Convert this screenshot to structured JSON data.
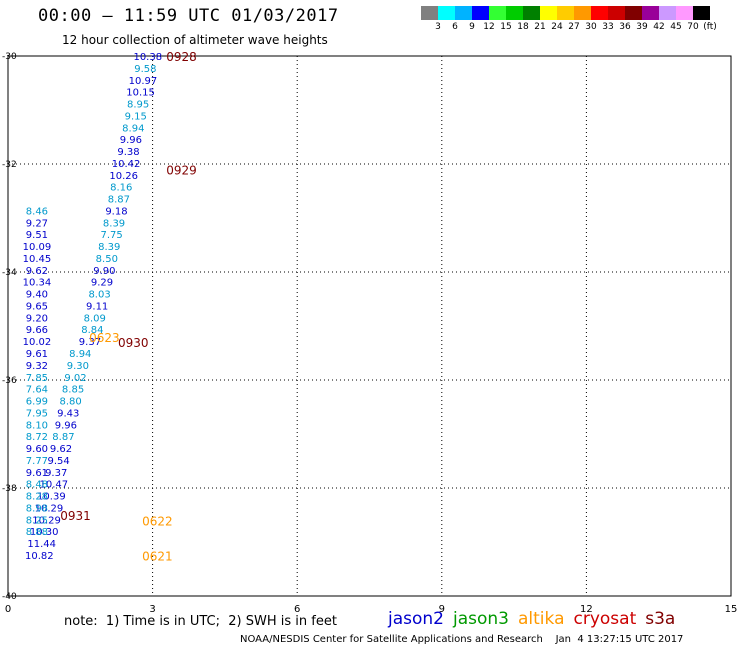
{
  "header": {
    "title": "00:00 — 11:59 UTC 01/03/2017",
    "subtitle": "12 hour collection of altimeter wave heights"
  },
  "colorbar": {
    "swatches": [
      "#808080",
      "#00ffff",
      "#00b3ff",
      "#0000ff",
      "#33ff33",
      "#00cc00",
      "#008000",
      "#ffff00",
      "#ffcc00",
      "#ff9900",
      "#ff0000",
      "#cc0000",
      "#800000",
      "#990099",
      "#cc99ff",
      "#ff99ff",
      "#000000"
    ],
    "labels": [
      "3",
      "6",
      "9",
      "12",
      "15",
      "18",
      "21",
      "24",
      "27",
      "30",
      "33",
      "36",
      "39",
      "42",
      "45",
      "70",
      "(ft)"
    ],
    "unit": "(ft)"
  },
  "note": "note:  1) Time is in UTC;  2) SWH is in feet",
  "legend": [
    {
      "name": "jason2",
      "color": "#0000cc"
    },
    {
      "name": "jason3",
      "color": "#009900"
    },
    {
      "name": "altika",
      "color": "#ff9900"
    },
    {
      "name": "cryosat",
      "color": "#cc0000"
    },
    {
      "name": "s3a",
      "color": "#800000"
    }
  ],
  "credit": "NOAA/NESDIS Center for Satellite Applications and Research    Jan  4 13:27:15 UTC 2017",
  "chart_data": {
    "type": "scatter",
    "title": "12 hour collection of altimeter wave heights",
    "xlim": [
      0,
      15
    ],
    "ylim": [
      -40,
      -30
    ],
    "x_ticks": [
      "0",
      "3",
      "6",
      "9",
      "12",
      "15"
    ],
    "y_ticks": [
      "-30",
      "-32",
      "-34",
      "-36",
      "-38",
      "-40"
    ],
    "grid": true,
    "points": [
      {
        "x": 2.9,
        "y": -30.0,
        "label": "10.38",
        "color": "#0000cc"
      },
      {
        "x": 2.85,
        "y": -30.22,
        "label": "9.58",
        "color": "#0099cc"
      },
      {
        "x": 2.8,
        "y": -30.44,
        "label": "10.97",
        "color": "#0000cc"
      },
      {
        "x": 2.75,
        "y": -30.66,
        "label": "10.15",
        "color": "#0000cc"
      },
      {
        "x": 2.7,
        "y": -30.88,
        "label": "8.95",
        "color": "#0099cc"
      },
      {
        "x": 2.65,
        "y": -31.1,
        "label": "9.15",
        "color": "#0099cc"
      },
      {
        "x": 2.6,
        "y": -31.32,
        "label": "8.94",
        "color": "#0099cc"
      },
      {
        "x": 2.55,
        "y": -31.54,
        "label": "9.96",
        "color": "#0000cc"
      },
      {
        "x": 2.5,
        "y": -31.76,
        "label": "9.38",
        "color": "#0000cc"
      },
      {
        "x": 2.45,
        "y": -31.98,
        "label": "10.42",
        "color": "#0000cc"
      },
      {
        "x": 2.4,
        "y": -32.2,
        "label": "10.26",
        "color": "#0000cc"
      },
      {
        "x": 2.35,
        "y": -32.42,
        "label": "8.16",
        "color": "#0099cc"
      },
      {
        "x": 2.3,
        "y": -32.64,
        "label": "8.87",
        "color": "#0099cc"
      },
      {
        "x": 2.25,
        "y": -32.86,
        "label": "9.18",
        "color": "#0000cc"
      },
      {
        "x": 2.2,
        "y": -33.08,
        "label": "8.39",
        "color": "#0099cc"
      },
      {
        "x": 2.15,
        "y": -33.3,
        "label": "7.75",
        "color": "#0099cc"
      },
      {
        "x": 2.1,
        "y": -33.52,
        "label": "8.39",
        "color": "#0099cc"
      },
      {
        "x": 2.05,
        "y": -33.74,
        "label": "8.50",
        "color": "#0099cc"
      },
      {
        "x": 2.0,
        "y": -33.96,
        "label": "9.90",
        "color": "#0000cc"
      },
      {
        "x": 1.95,
        "y": -34.18,
        "label": "9.29",
        "color": "#0000cc"
      },
      {
        "x": 1.9,
        "y": -34.4,
        "label": "8.03",
        "color": "#0099cc"
      },
      {
        "x": 1.85,
        "y": -34.62,
        "label": "9.11",
        "color": "#0000cc"
      },
      {
        "x": 1.8,
        "y": -34.84,
        "label": "8.09",
        "color": "#0099cc"
      },
      {
        "x": 1.75,
        "y": -35.06,
        "label": "8.84",
        "color": "#0099cc"
      },
      {
        "x": 1.7,
        "y": -35.28,
        "label": "9.37",
        "color": "#0000cc"
      },
      {
        "x": 1.5,
        "y": -35.5,
        "label": "8.94",
        "color": "#0099cc"
      },
      {
        "x": 1.45,
        "y": -35.72,
        "label": "9.30",
        "color": "#0099cc"
      },
      {
        "x": 1.4,
        "y": -35.94,
        "label": "9.02",
        "color": "#0099cc"
      },
      {
        "x": 1.35,
        "y": -36.16,
        "label": "8.85",
        "color": "#0099cc"
      },
      {
        "x": 1.3,
        "y": -36.38,
        "label": "8.80",
        "color": "#0099cc"
      },
      {
        "x": 1.25,
        "y": -36.6,
        "label": "9.43",
        "color": "#0000cc"
      },
      {
        "x": 1.2,
        "y": -36.82,
        "label": "9.96",
        "color": "#0000cc"
      },
      {
        "x": 1.15,
        "y": -37.04,
        "label": "8.87",
        "color": "#0099cc"
      },
      {
        "x": 1.1,
        "y": -37.26,
        "label": "9.62",
        "color": "#0000cc"
      },
      {
        "x": 1.05,
        "y": -37.48,
        "label": "9.54",
        "color": "#0000cc"
      },
      {
        "x": 1.0,
        "y": -37.7,
        "label": "9.37",
        "color": "#0000cc"
      },
      {
        "x": 0.95,
        "y": -37.92,
        "label": "10.47",
        "color": "#0000cc"
      },
      {
        "x": 0.9,
        "y": -38.14,
        "label": "10.39",
        "color": "#0000cc"
      },
      {
        "x": 0.85,
        "y": -38.36,
        "label": "10.29",
        "color": "#0000cc"
      },
      {
        "x": 0.8,
        "y": -38.58,
        "label": "10.29",
        "color": "#0000cc"
      },
      {
        "x": 0.75,
        "y": -38.8,
        "label": "10.30",
        "color": "#0000cc"
      },
      {
        "x": 0.7,
        "y": -39.02,
        "label": "11.44",
        "color": "#0000cc"
      },
      {
        "x": 0.65,
        "y": -39.24,
        "label": "10.82",
        "color": "#0000cc"
      },
      {
        "x": 0.6,
        "y": -32.86,
        "label": "8.46",
        "color": "#0099cc"
      },
      {
        "x": 0.6,
        "y": -33.08,
        "label": "9.27",
        "color": "#0000cc"
      },
      {
        "x": 0.6,
        "y": -33.3,
        "label": "9.51",
        "color": "#0000cc"
      },
      {
        "x": 0.6,
        "y": -33.52,
        "label": "10.09",
        "color": "#0000cc"
      },
      {
        "x": 0.6,
        "y": -33.74,
        "label": "10.45",
        "color": "#0000cc"
      },
      {
        "x": 0.6,
        "y": -33.96,
        "label": "9.62",
        "color": "#0000cc"
      },
      {
        "x": 0.6,
        "y": -34.18,
        "label": "10.34",
        "color": "#0000cc"
      },
      {
        "x": 0.6,
        "y": -34.4,
        "label": "9.40",
        "color": "#0000cc"
      },
      {
        "x": 0.6,
        "y": -34.62,
        "label": "9.65",
        "color": "#0000cc"
      },
      {
        "x": 0.6,
        "y": -34.84,
        "label": "9.20",
        "color": "#0000cc"
      },
      {
        "x": 0.6,
        "y": -35.06,
        "label": "9.66",
        "color": "#0000cc"
      },
      {
        "x": 0.6,
        "y": -35.28,
        "label": "10.02",
        "color": "#0000cc"
      },
      {
        "x": 0.6,
        "y": -35.5,
        "label": "9.61",
        "color": "#0000cc"
      },
      {
        "x": 0.6,
        "y": -35.72,
        "label": "9.32",
        "color": "#0000cc"
      },
      {
        "x": 0.6,
        "y": -35.94,
        "label": "7.85",
        "color": "#0099cc"
      },
      {
        "x": 0.6,
        "y": -36.16,
        "label": "7.64",
        "color": "#0099cc"
      },
      {
        "x": 0.6,
        "y": -36.38,
        "label": "6.99",
        "color": "#0099cc"
      },
      {
        "x": 0.6,
        "y": -36.6,
        "label": "7.95",
        "color": "#0099cc"
      },
      {
        "x": 0.6,
        "y": -36.82,
        "label": "8.10",
        "color": "#0099cc"
      },
      {
        "x": 0.6,
        "y": -37.04,
        "label": "8.72",
        "color": "#0099cc"
      },
      {
        "x": 0.6,
        "y": -37.26,
        "label": "9.60",
        "color": "#0000cc"
      },
      {
        "x": 0.6,
        "y": -37.48,
        "label": "7.77",
        "color": "#0099cc"
      },
      {
        "x": 0.6,
        "y": -37.7,
        "label": "9.61",
        "color": "#0000cc"
      },
      {
        "x": 0.6,
        "y": -37.92,
        "label": "8.48",
        "color": "#0099cc"
      },
      {
        "x": 0.6,
        "y": -38.14,
        "label": "8.28",
        "color": "#0099cc"
      },
      {
        "x": 0.6,
        "y": -38.36,
        "label": "8.98",
        "color": "#0099cc"
      },
      {
        "x": 0.6,
        "y": -38.58,
        "label": "8.25",
        "color": "#0099cc"
      },
      {
        "x": 0.6,
        "y": -38.8,
        "label": "8.88",
        "color": "#0099cc"
      }
    ],
    "time_labels": [
      {
        "x": 3.6,
        "y": -30.0,
        "label": "0928",
        "color": "#800000"
      },
      {
        "x": 3.6,
        "y": -32.1,
        "label": "0929",
        "color": "#800000"
      },
      {
        "x": 2.6,
        "y": -35.3,
        "label": "0930",
        "color": "#800000"
      },
      {
        "x": 2.0,
        "y": -35.2,
        "label": "0623",
        "color": "#ff9900"
      },
      {
        "x": 1.4,
        "y": -38.5,
        "label": "0931",
        "color": "#800000"
      },
      {
        "x": 3.1,
        "y": -38.6,
        "label": "0622",
        "color": "#ff9900"
      },
      {
        "x": 3.1,
        "y": -39.25,
        "label": "0621",
        "color": "#ff9900"
      }
    ]
  }
}
